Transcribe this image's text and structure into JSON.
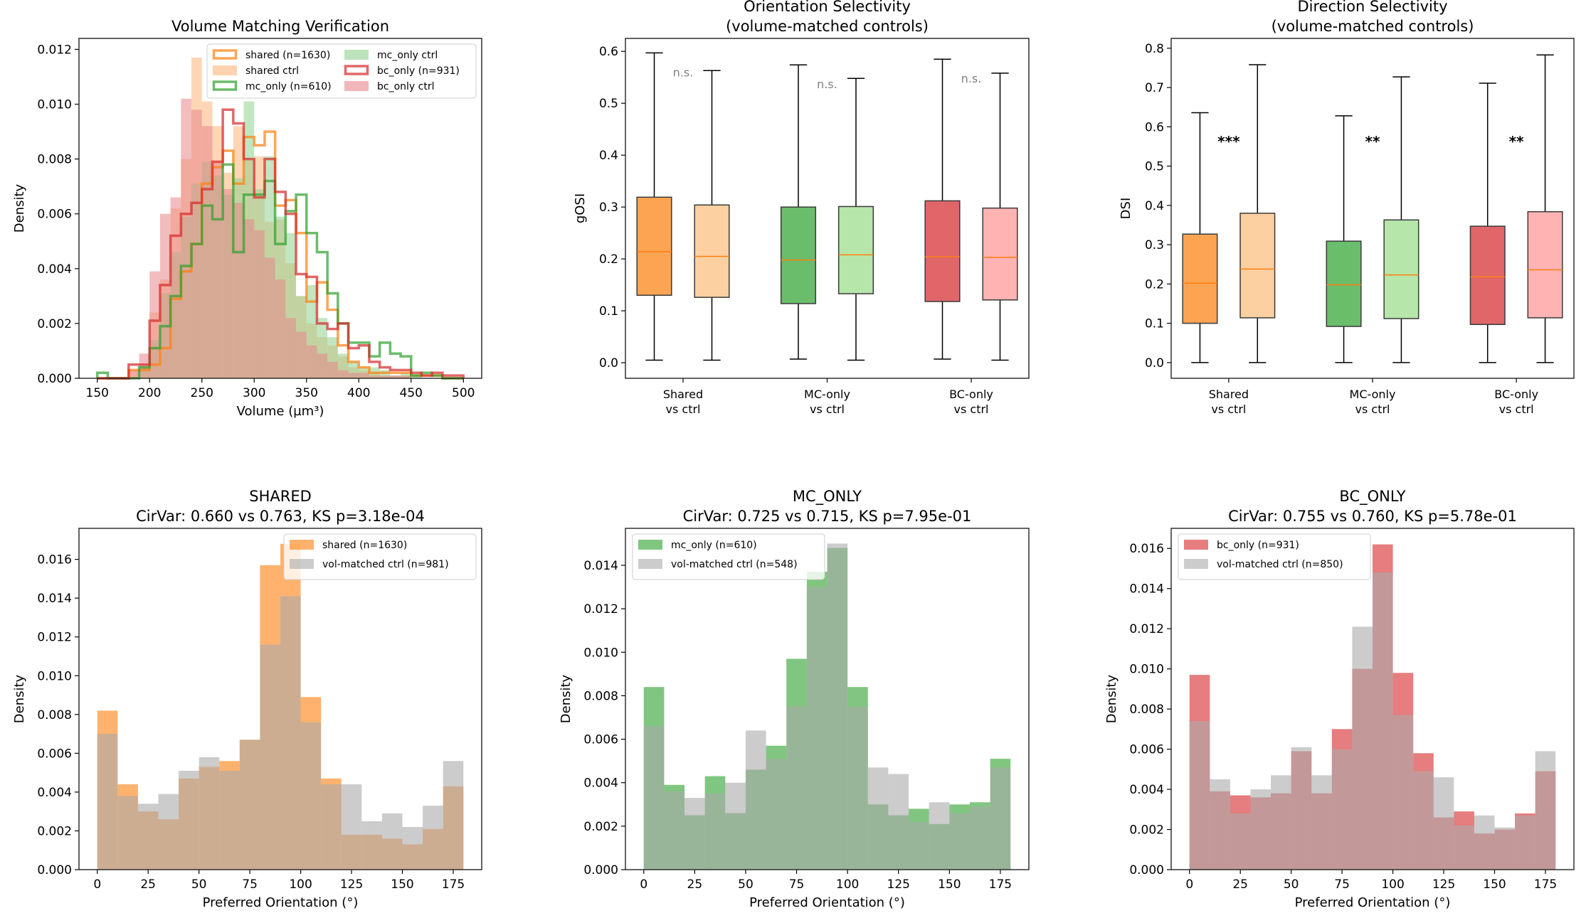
{
  "chart_data": [
    {
      "type": "histogram",
      "title_lines": [
        "Volume Matching Verification"
      ],
      "xlabel": "Volume (µm³)",
      "ylabel": "Density",
      "xlim": [
        132.5,
        517.5
      ],
      "ylim": [
        0,
        0.0124
      ],
      "xticks": [
        "150",
        "200",
        "250",
        "300",
        "350",
        "400",
        "450",
        "500"
      ],
      "yticks": [
        "0.000",
        "0.002",
        "0.004",
        "0.006",
        "0.008",
        "0.010",
        "0.012"
      ],
      "bin_start": 150,
      "bin_width": 10,
      "legend": "top-right",
      "legend_columns": 2,
      "series": [
        {
          "name": "shared (n=1630)",
          "style": "step",
          "color": "#ff7f0e",
          "values": [
            0,
            0,
            0,
            0.0003,
            0.0003,
            0.0005,
            0.0011,
            0.0029,
            0.0039,
            0.0049,
            0.0071,
            0.0077,
            0.0083,
            0.0071,
            0.0088,
            0.0085,
            0.009,
            0.0063,
            0.0065,
            0.0053,
            0.0028,
            0.0035,
            0.0025,
            0.0012,
            0.0006,
            0.0004,
            0.0002,
            0.0002,
            0.0002,
            0.0002,
            0.0001,
            0.0001,
            0.0001,
            0,
            0
          ]
        },
        {
          "name": "shared ctrl",
          "style": "filled",
          "color": "#fdb57a",
          "values": [
            0,
            0,
            0,
            0.0003,
            0.0004,
            0.0024,
            0.0036,
            0.0062,
            0.008,
            0.0117,
            0.0101,
            0.0092,
            0.0075,
            0.0092,
            0.008,
            0.0081,
            0.0057,
            0.0058,
            0.0042,
            0.003,
            0.002,
            0.0015,
            0.0012,
            0.0008,
            0.0004,
            0.0003,
            0.0002,
            0.0001,
            0.0001,
            0.0001,
            0,
            0,
            0,
            0,
            0
          ]
        },
        {
          "name": "mc_only (n=610)",
          "style": "step",
          "color": "#2ca02c",
          "values": [
            0.0002,
            0,
            0,
            0,
            0.0004,
            0.0011,
            0.0019,
            0.003,
            0.0041,
            0.0049,
            0.0063,
            0.0058,
            0.0078,
            0.0046,
            0.0067,
            0.0067,
            0.0072,
            0.0049,
            0.0061,
            0.0067,
            0.0053,
            0.0046,
            0.0031,
            0.002,
            0.0013,
            0.0013,
            0.0008,
            0.0013,
            0.0009,
            0.0008,
            0.0001,
            0.0002,
            0.0001,
            0,
            0
          ]
        },
        {
          "name": "mc_only ctrl",
          "style": "filled",
          "color": "#8fd18f",
          "values": [
            0,
            0,
            0,
            0,
            0.0004,
            0.0014,
            0.0031,
            0.0046,
            0.0059,
            0.0071,
            0.0079,
            0.0074,
            0.0067,
            0.0073,
            0.0101,
            0.0069,
            0.0081,
            0.0059,
            0.0053,
            0.003,
            0.0034,
            0.0022,
            0.0015,
            0.0009,
            0.0006,
            0.0004,
            0.0004,
            0.0003,
            0.0001,
            0.0002,
            0.0001,
            0,
            0,
            0,
            0
          ]
        },
        {
          "name": "bc_only (n=931)",
          "style": "step",
          "color": "#d62728",
          "values": [
            0,
            0,
            0,
            0.0005,
            0.0005,
            0.0021,
            0.0034,
            0.0052,
            0.006,
            0.0064,
            0.0069,
            0.0079,
            0.0098,
            0.0093,
            0.008,
            0.0066,
            0.008,
            0.0068,
            0.006,
            0.0038,
            0.0037,
            0.002,
            0.0018,
            0.002,
            0.0011,
            0.0012,
            0.0006,
            0.0004,
            0.0003,
            0.0003,
            0.0002,
            0.0001,
            0.0002,
            0.0001,
            0.0001
          ]
        },
        {
          "name": "bc_only ctrl",
          "style": "filled",
          "color": "#e8868a",
          "values": [
            0,
            0,
            0,
            0.0003,
            0.0009,
            0.0039,
            0.006,
            0.0066,
            0.0102,
            0.0098,
            0.0092,
            0.0079,
            0.0069,
            0.0064,
            0.0058,
            0.0054,
            0.0044,
            0.0036,
            0.0022,
            0.0017,
            0.0012,
            0.0009,
            0.0006,
            0.0003,
            0.0002,
            0.0002,
            0.0001,
            0.0001,
            0.0001,
            0.0001,
            0,
            0,
            0,
            0,
            0
          ]
        }
      ]
    },
    {
      "type": "box",
      "title_lines": [
        "Orientation Selectivity",
        "(volume-matched controls)"
      ],
      "ylabel": "gOSI",
      "xlim": [
        0.6,
        3.4
      ],
      "ylim": [
        -0.03,
        0.625
      ],
      "yticks": [
        "0.0",
        "0.1",
        "0.2",
        "0.3",
        "0.4",
        "0.5",
        "0.6"
      ],
      "categories": [
        [
          "Shared",
          "vs ctrl"
        ],
        [
          "MC-only",
          "vs ctrl"
        ],
        [
          "BC-only",
          "vs ctrl"
        ]
      ],
      "annotations": [
        "n.s.",
        "n.s.",
        "n.s."
      ],
      "annotation_color": "#808080",
      "median_color": "#ff7f0e",
      "boxes": [
        {
          "group": 1,
          "side": "group",
          "color": "#fda453",
          "stats": [
            0.005,
            0.13,
            0.214,
            0.319,
            0.597
          ]
        },
        {
          "group": 1,
          "side": "ctrl",
          "color": "#fdd0a2",
          "stats": [
            0.005,
            0.126,
            0.205,
            0.304,
            0.563
          ]
        },
        {
          "group": 2,
          "side": "group",
          "color": "#6abd6a",
          "stats": [
            0.007,
            0.114,
            0.198,
            0.3,
            0.574
          ]
        },
        {
          "group": 2,
          "side": "ctrl",
          "color": "#b7e6aa",
          "stats": [
            0.005,
            0.133,
            0.208,
            0.301,
            0.548
          ]
        },
        {
          "group": 3,
          "side": "group",
          "color": "#e0666a",
          "stats": [
            0.007,
            0.118,
            0.204,
            0.312,
            0.585
          ]
        },
        {
          "group": 3,
          "side": "ctrl",
          "color": "#ffb3b3",
          "stats": [
            0.005,
            0.121,
            0.203,
            0.298,
            0.558
          ]
        }
      ]
    },
    {
      "type": "box",
      "title_lines": [
        "Direction Selectivity",
        "(volume-matched controls)"
      ],
      "ylabel": "DSI",
      "xlim": [
        0.6,
        3.4
      ],
      "ylim": [
        -0.04,
        0.825
      ],
      "yticks": [
        "0.0",
        "0.1",
        "0.2",
        "0.3",
        "0.4",
        "0.5",
        "0.6",
        "0.7",
        "0.8"
      ],
      "categories": [
        [
          "Shared",
          "vs ctrl"
        ],
        [
          "MC-only",
          "vs ctrl"
        ],
        [
          "BC-only",
          "vs ctrl"
        ]
      ],
      "annotations": [
        "***",
        "**",
        "**"
      ],
      "annotation_color": "#000000",
      "median_color": "#ff7f0e",
      "boxes": [
        {
          "group": 1,
          "side": "group",
          "color": "#fda453",
          "stats": [
            0,
            0.1,
            0.202,
            0.327,
            0.636
          ]
        },
        {
          "group": 1,
          "side": "ctrl",
          "color": "#fdd0a2",
          "stats": [
            0,
            0.114,
            0.238,
            0.38,
            0.758
          ]
        },
        {
          "group": 2,
          "side": "group",
          "color": "#6abd6a",
          "stats": [
            0,
            0.092,
            0.198,
            0.309,
            0.628
          ]
        },
        {
          "group": 2,
          "side": "ctrl",
          "color": "#b7e6aa",
          "stats": [
            0,
            0.112,
            0.223,
            0.363,
            0.727
          ]
        },
        {
          "group": 3,
          "side": "group",
          "color": "#e0666a",
          "stats": [
            0,
            0.097,
            0.218,
            0.347,
            0.711
          ]
        },
        {
          "group": 3,
          "side": "ctrl",
          "color": "#ffb3b3",
          "stats": [
            0,
            0.114,
            0.236,
            0.384,
            0.783
          ]
        }
      ]
    },
    {
      "type": "histogram",
      "title_lines": [
        "SHARED",
        "CirVar: 0.660 vs 0.763, KS p=3.18e-04"
      ],
      "xlabel": "Preferred Orientation (°)",
      "ylabel": "Density",
      "xlim": [
        -9,
        189
      ],
      "ylim": [
        0,
        0.0176
      ],
      "xticks": [
        "0",
        "25",
        "50",
        "75",
        "100",
        "125",
        "150",
        "175"
      ],
      "yticks": [
        "0.000",
        "0.002",
        "0.004",
        "0.006",
        "0.008",
        "0.010",
        "0.012",
        "0.014",
        "0.016"
      ],
      "bin_start": 0,
      "bin_width": 10,
      "legend": "top-right",
      "legend_columns": 1,
      "series": [
        {
          "name": "shared (n=1630)",
          "style": "filled",
          "color": "#ff7f0e",
          "values": [
            0.0082,
            0.0044,
            0.003,
            0.0026,
            0.0047,
            0.0053,
            0.0056,
            0.0067,
            0.0157,
            0.0168,
            0.0089,
            0.0047,
            0.0018,
            0.0018,
            0.0016,
            0.0013,
            0.0021,
            0.0043
          ]
        },
        {
          "name": "vol-matched ctrl (n=981)",
          "style": "filled",
          "color": "#aaaaaa",
          "values": [
            0.007,
            0.0038,
            0.0034,
            0.0039,
            0.0051,
            0.0058,
            0.0051,
            0.0067,
            0.0116,
            0.0141,
            0.0076,
            0.0044,
            0.0044,
            0.0025,
            0.0029,
            0.0022,
            0.0033,
            0.0056
          ]
        }
      ]
    },
    {
      "type": "histogram",
      "title_lines": [
        "MC_ONLY",
        "CirVar: 0.725 vs 0.715, KS p=7.95e-01"
      ],
      "xlabel": "Preferred Orientation (°)",
      "ylabel": "Density",
      "xlim": [
        -9,
        189
      ],
      "ylim": [
        0,
        0.0157
      ],
      "xticks": [
        "0",
        "25",
        "50",
        "75",
        "100",
        "125",
        "150",
        "175"
      ],
      "yticks": [
        "0.000",
        "0.002",
        "0.004",
        "0.006",
        "0.008",
        "0.010",
        "0.012",
        "0.014"
      ],
      "bin_start": 0,
      "bin_width": 10,
      "legend": "top-left",
      "legend_columns": 1,
      "series": [
        {
          "name": "mc_only (n=610)",
          "style": "filled",
          "color": "#2ca02c",
          "values": [
            0.0084,
            0.0039,
            0.0025,
            0.0043,
            0.0026,
            0.0046,
            0.0057,
            0.0097,
            0.0137,
            0.0148,
            0.0084,
            0.003,
            0.0025,
            0.0028,
            0.0021,
            0.003,
            0.0031,
            0.0051
          ]
        },
        {
          "name": "vol-matched ctrl (n=548)",
          "style": "filled",
          "color": "#aaaaaa",
          "values": [
            0.0066,
            0.0036,
            0.0033,
            0.0035,
            0.004,
            0.0064,
            0.0051,
            0.0075,
            0.013,
            0.015,
            0.0075,
            0.0047,
            0.0044,
            0.0022,
            0.0031,
            0.0026,
            0.0029,
            0.0047
          ]
        }
      ]
    },
    {
      "type": "histogram",
      "title_lines": [
        "BC_ONLY",
        "CirVar: 0.755 vs 0.760, KS p=5.78e-01"
      ],
      "xlabel": "Preferred Orientation (°)",
      "ylabel": "Density",
      "xlim": [
        -9,
        189
      ],
      "ylim": [
        0,
        0.017
      ],
      "xticks": [
        "0",
        "25",
        "50",
        "75",
        "100",
        "125",
        "150",
        "175"
      ],
      "yticks": [
        "0.000",
        "0.002",
        "0.004",
        "0.006",
        "0.008",
        "0.010",
        "0.012",
        "0.014",
        "0.016"
      ],
      "bin_start": 0,
      "bin_width": 10,
      "legend": "top-left",
      "legend_columns": 1,
      "series": [
        {
          "name": "bc_only (n=931)",
          "style": "filled",
          "color": "#d62728",
          "values": [
            0.0097,
            0.0039,
            0.0037,
            0.0036,
            0.0038,
            0.0059,
            0.0038,
            0.007,
            0.01,
            0.0162,
            0.0098,
            0.0058,
            0.0026,
            0.0029,
            0.0018,
            0.002,
            0.0028,
            0.0049
          ]
        },
        {
          "name": "vol-matched ctrl (n=850)",
          "style": "filled",
          "color": "#aaaaaa",
          "values": [
            0.0074,
            0.0045,
            0.0028,
            0.004,
            0.0047,
            0.0061,
            0.0047,
            0.006,
            0.0121,
            0.0148,
            0.0077,
            0.0049,
            0.0046,
            0.0022,
            0.0027,
            0.0021,
            0.0027,
            0.0059
          ]
        }
      ]
    }
  ]
}
